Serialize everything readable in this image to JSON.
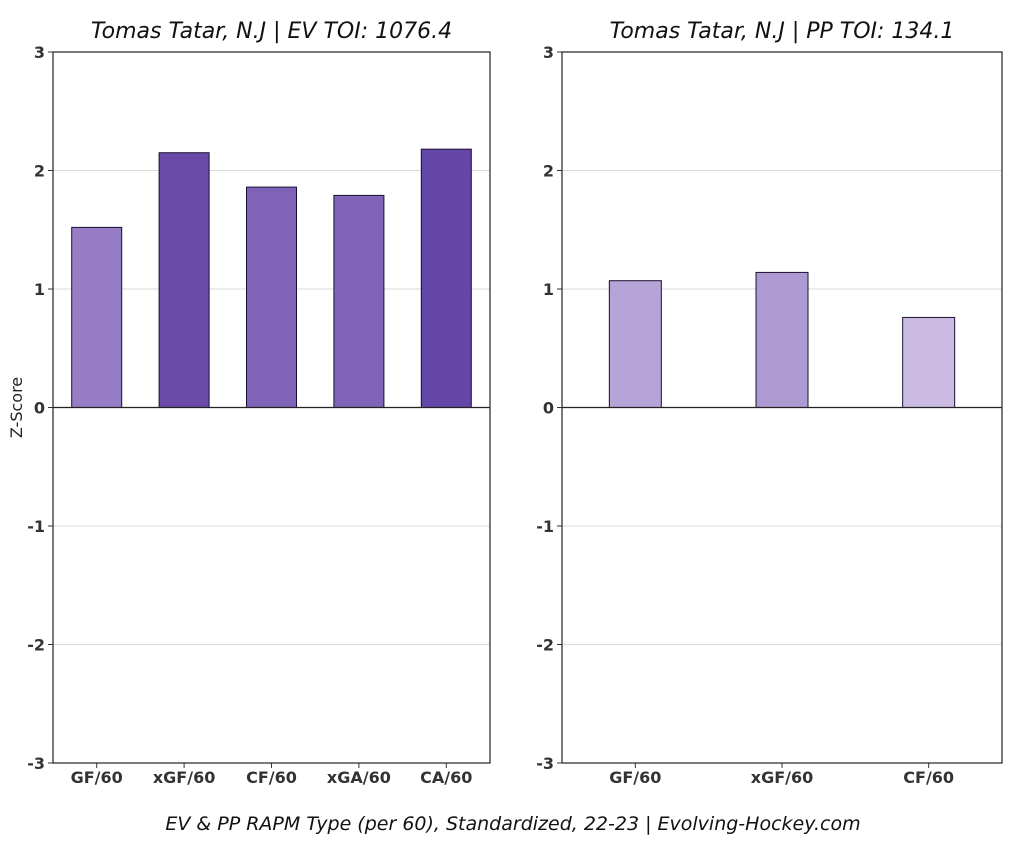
{
  "footer": "EV & PP RAPM Type (per 60), Standardized, 22-23    |    Evolving-Hockey.com",
  "chart_data": [
    {
      "type": "bar",
      "title": "Tomas Tatar, N.J  |  EV TOI: 1076.4",
      "ylabel": "Z-Score",
      "ylim": [
        -3,
        3
      ],
      "yticks": [
        -3,
        -2,
        -1,
        0,
        1,
        2,
        3
      ],
      "grid": true,
      "categories": [
        "GF/60",
        "xGF/60",
        "CF/60",
        "xGA/60",
        "CA/60"
      ],
      "values": [
        1.52,
        2.15,
        1.86,
        1.79,
        2.18
      ],
      "colors": [
        "#977dc6",
        "#6a4baa",
        "#7f63b8",
        "#8064b8",
        "#6446a8"
      ]
    },
    {
      "type": "bar",
      "title": "Tomas Tatar, N.J  |  PP TOI: 134.1",
      "ylabel": "",
      "ylim": [
        -3,
        3
      ],
      "yticks": [
        -3,
        -2,
        -1,
        0,
        1,
        2,
        3
      ],
      "grid": true,
      "categories": [
        "GF/60",
        "xGF/60",
        "CF/60"
      ],
      "values": [
        1.07,
        1.14,
        0.76
      ],
      "colors": [
        "#b6a3d8",
        "#ae9ad3",
        "#cbbbe2"
      ]
    }
  ]
}
